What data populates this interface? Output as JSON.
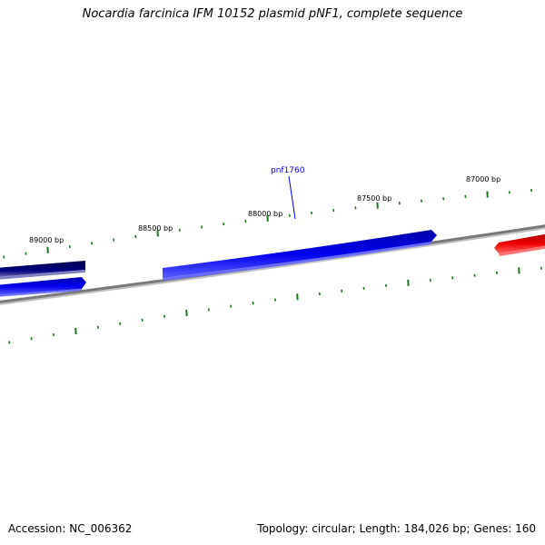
{
  "title": "Nocardia farcinica IFM 10152 plasmid pNF1, complete sequence",
  "footer": {
    "accession": "Accession: NC_006362",
    "summary": "Topology: circular; Length: 184,026 bp; Genes: 160"
  },
  "ticks": [
    {
      "label": "89000 bp"
    },
    {
      "label": "88500 bp"
    },
    {
      "label": "88000 bp"
    },
    {
      "label": "87500 bp"
    },
    {
      "label": "87000 bp"
    }
  ],
  "genes": [
    {
      "name": "pnf1760"
    }
  ],
  "colors": {
    "backbone": "#808080",
    "tick": "#1a7a1a",
    "forward_gene": "#0000ee",
    "forward_gene_dark": "#000080",
    "reverse_gene": "#ee0000",
    "gene_label": "#0000ff"
  }
}
